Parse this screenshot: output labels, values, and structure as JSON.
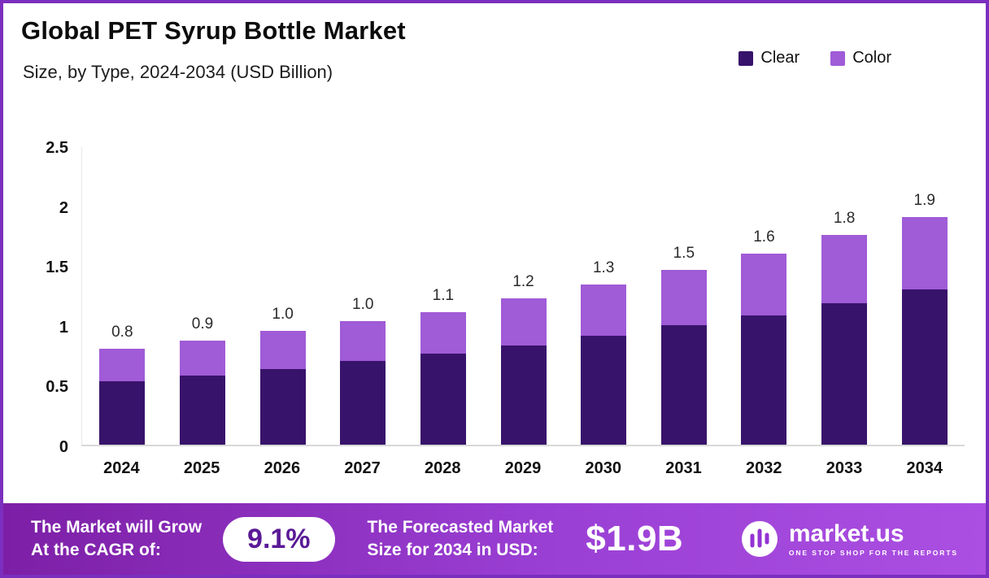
{
  "header": {
    "title": "Global PET Syrup Bottle Market",
    "subtitle": "Size, by Type, 2024-2034 (USD Billion)"
  },
  "chart_data": {
    "type": "bar",
    "subtype": "stacked",
    "categories": [
      "2024",
      "2025",
      "2026",
      "2027",
      "2028",
      "2029",
      "2030",
      "2031",
      "2032",
      "2033",
      "2034"
    ],
    "series": [
      {
        "name": "Clear",
        "color": "#38136b",
        "values": [
          0.53,
          0.58,
          0.63,
          0.7,
          0.76,
          0.83,
          0.91,
          1.0,
          1.08,
          1.18,
          1.3
        ]
      },
      {
        "name": "Color",
        "color": "#a05bd7",
        "values": [
          0.27,
          0.29,
          0.32,
          0.33,
          0.35,
          0.39,
          0.43,
          0.46,
          0.52,
          0.57,
          0.6
        ]
      }
    ],
    "total_labels": [
      "0.8",
      "0.9",
      "1.0",
      "1.0",
      "1.1",
      "1.2",
      "1.3",
      "1.5",
      "1.6",
      "1.8",
      "1.9"
    ],
    "title": "Global PET Syrup Bottle Market",
    "xlabel": "",
    "ylabel": "",
    "ylim": [
      0,
      2.5
    ],
    "yticks": [
      "2.5",
      "2",
      "1.5",
      "1",
      "0.5",
      "0"
    ],
    "grid": false,
    "legend_position": "top-right"
  },
  "banner": {
    "growth_label_line1": "The Market will Grow",
    "growth_label_line2": "At the CAGR of:",
    "cagr_value": "9.1%",
    "forecast_label_line1": "The Forecasted Market",
    "forecast_label_line2": "Size for 2034 in USD:",
    "forecast_value": "$1.9B",
    "brand": {
      "name": "market.us",
      "tagline": "ONE STOP SHOP FOR THE REPORTS"
    }
  },
  "colors": {
    "clear_series": "#38136b",
    "color_series": "#a05bd7",
    "page_border": "#7b2fbf",
    "banner_gradient_start": "#7d1fa6",
    "banner_gradient_end": "#ab4fe2",
    "pill_text": "#5a1a96"
  }
}
